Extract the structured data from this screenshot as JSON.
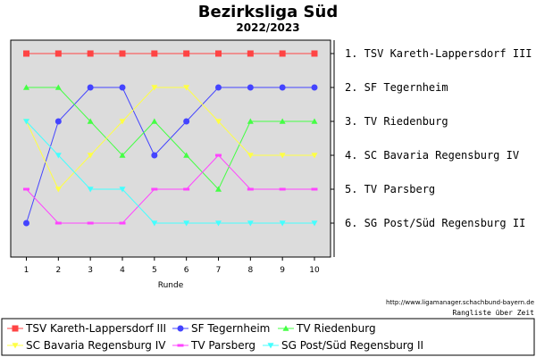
{
  "chart_data": {
    "type": "line",
    "title": "Bezirksliga Süd",
    "subtitle": "2022/2023",
    "xlabel": "Runde",
    "x": [
      1,
      2,
      3,
      4,
      5,
      6,
      7,
      8,
      9,
      10
    ],
    "ylim": [
      1,
      6
    ],
    "y_inverted": true,
    "grid": false,
    "final_ranking": [
      "1. TSV Kareth-Lappersdorf III",
      "2. SF Tegernheim",
      "3. TV Riedenburg",
      "4. SC Bavaria Regensburg IV",
      "5. TV Parsberg",
      "6. SG Post/Süd Regensburg II"
    ],
    "series": [
      {
        "name": "TSV Kareth-Lappersdorf III",
        "color": "#ff4444",
        "marker": "square",
        "values": [
          1,
          1,
          1,
          1,
          1,
          1,
          1,
          1,
          1,
          1
        ]
      },
      {
        "name": "SF Tegernheim",
        "color": "#4444ff",
        "marker": "circle",
        "values": [
          6,
          3,
          2,
          2,
          4,
          3,
          2,
          2,
          2,
          2
        ]
      },
      {
        "name": "TV Riedenburg",
        "color": "#44ff44",
        "marker": "triangle-up",
        "values": [
          2,
          2,
          3,
          4,
          3,
          4,
          5,
          3,
          3,
          3
        ]
      },
      {
        "name": "SC Bavaria Regensburg IV",
        "color": "#ffff44",
        "marker": "triangle-down",
        "values": [
          3,
          5,
          4,
          3,
          2,
          2,
          3,
          4,
          4,
          4
        ]
      },
      {
        "name": "TV Parsberg",
        "color": "#ff44ff",
        "marker": "dash",
        "values": [
          5,
          6,
          6,
          6,
          5,
          5,
          4,
          5,
          5,
          5
        ]
      },
      {
        "name": "SG Post/Süd Regensburg II",
        "color": "#44ffff",
        "marker": "triangle-down",
        "values": [
          3,
          4,
          5,
          5,
          6,
          6,
          6,
          6,
          6,
          6
        ]
      }
    ],
    "legend_position": "bottom"
  },
  "footer": {
    "url": "http://www.ligamanager.schachbund-bayern.de",
    "caption": "Rangliste über Zeit"
  }
}
